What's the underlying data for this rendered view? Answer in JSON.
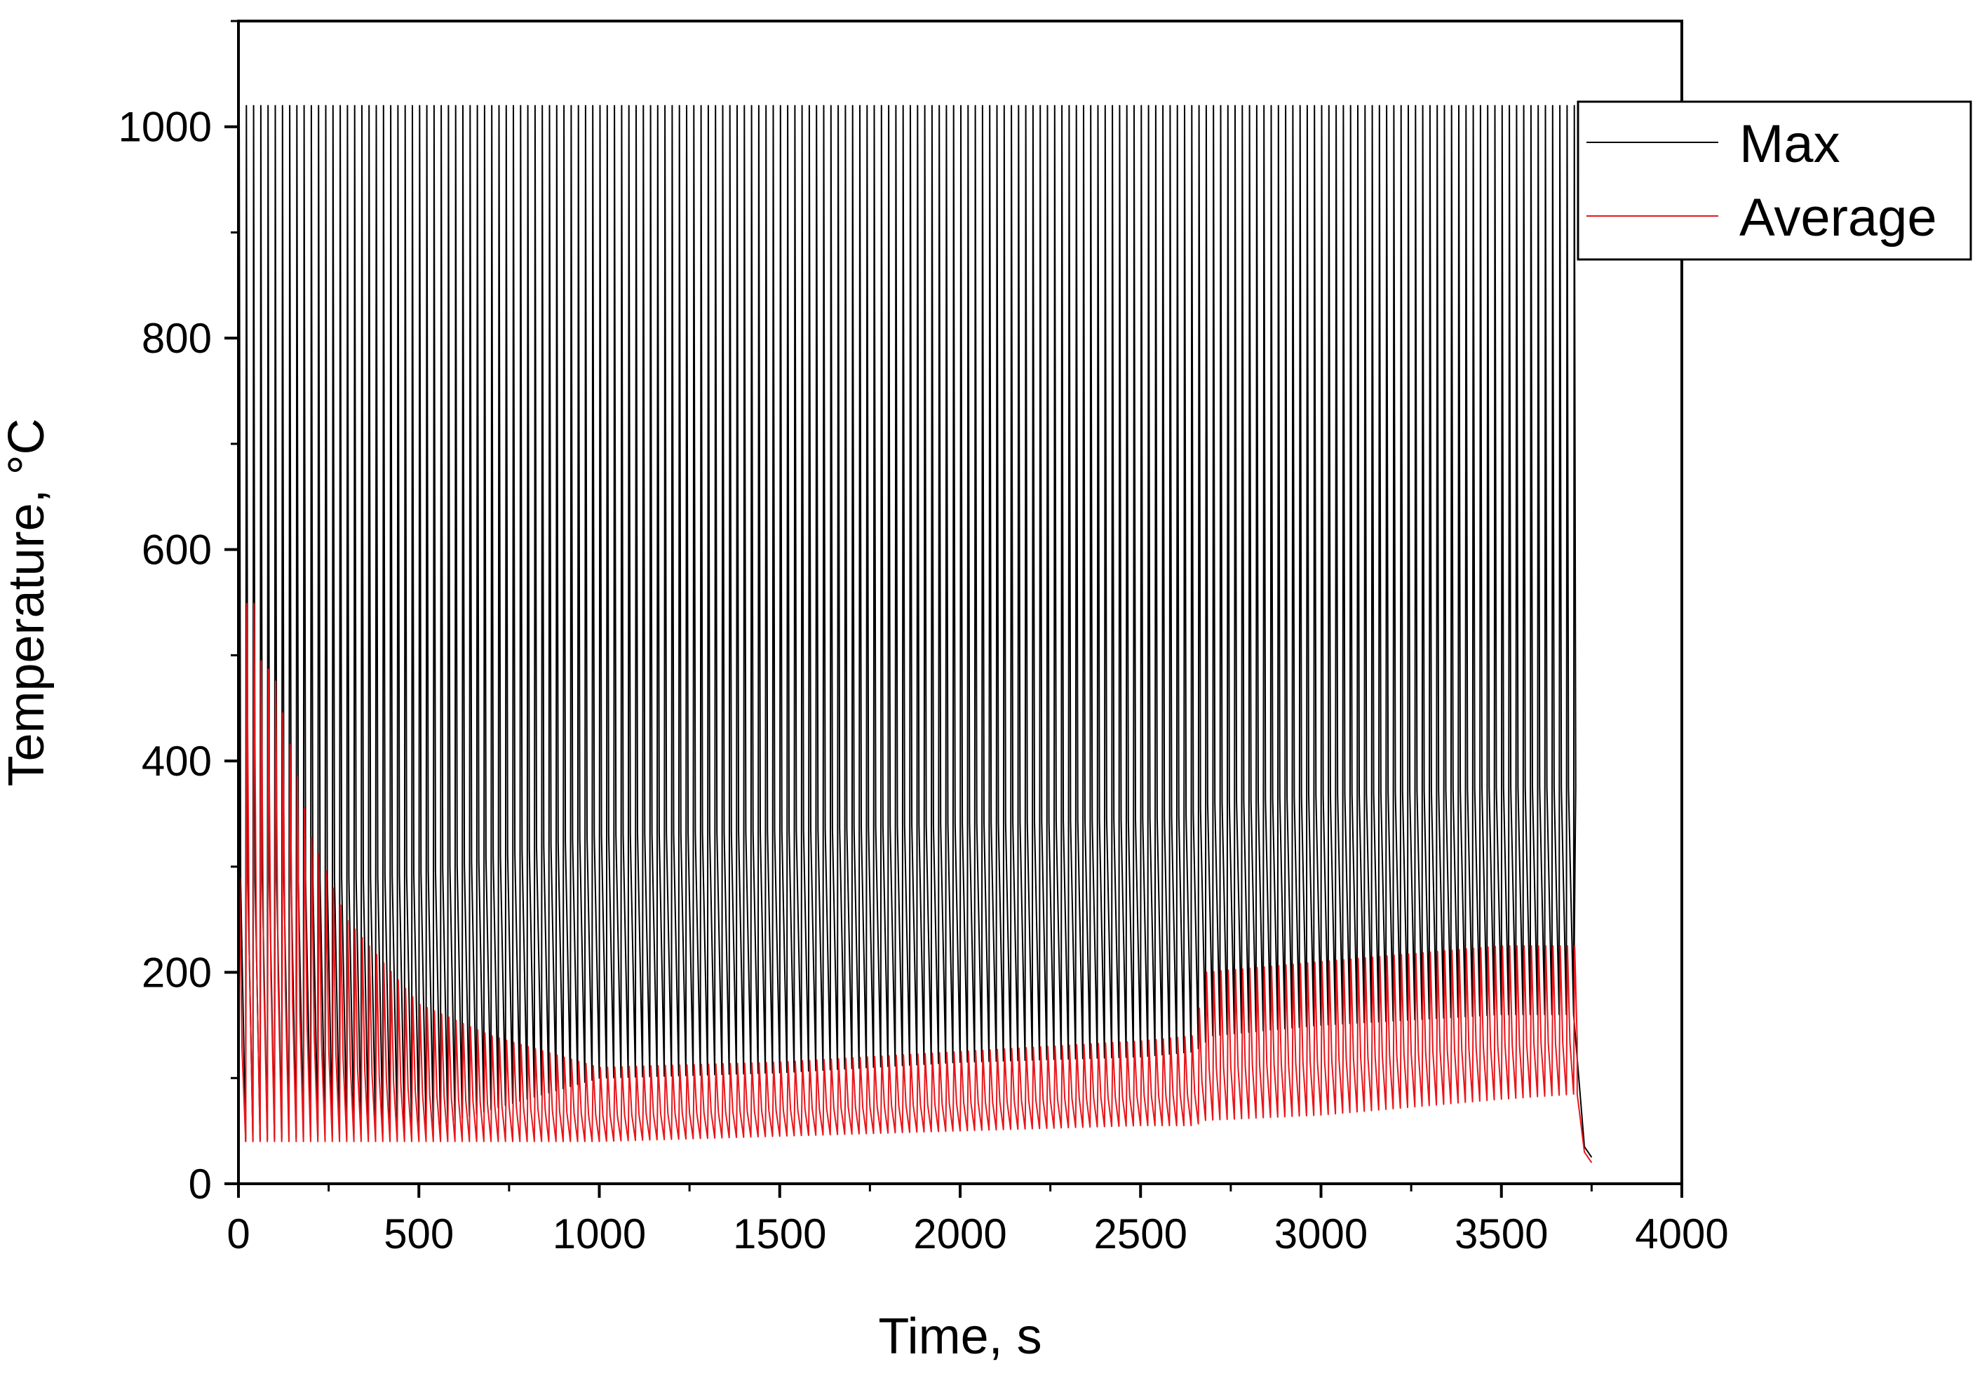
{
  "chart_data": {
    "type": "line",
    "title": "",
    "xlabel": "Time, s",
    "ylabel": "Temperature, °C",
    "xlim": [
      0,
      4000
    ],
    "ylim": [
      0,
      1100
    ],
    "x_ticks": [
      0,
      500,
      1000,
      1500,
      2000,
      2500,
      3000,
      3500,
      4000
    ],
    "y_ticks": [
      0,
      200,
      400,
      600,
      800,
      1000
    ],
    "x_tick_labels": [
      "0",
      "500",
      "1000",
      "1500",
      "2000",
      "2500",
      "3000",
      "3500",
      "4000"
    ],
    "y_tick_labels": [
      "0",
      "200",
      "400",
      "600",
      "800",
      "1000"
    ],
    "grid": false,
    "legend_position": "top-right",
    "cycle_period_s": 20,
    "end_time_s": 3750,
    "series": [
      {
        "name": "Max",
        "color": "#000000",
        "peak_value": 1020,
        "envelope": {
          "x": [
            0,
            10,
            200,
            500,
            1000,
            1500,
            2000,
            2500,
            2650,
            2700,
            3000,
            3500,
            3700,
            3720,
            3750
          ],
          "min": [
            40,
            40,
            45,
            50,
            100,
            105,
            115,
            120,
            125,
            140,
            150,
            160,
            160,
            40,
            25
          ]
        }
      },
      {
        "name": "Average",
        "color": "#e8161b",
        "envelope": {
          "x": [
            0,
            30,
            50,
            100,
            200,
            300,
            500,
            700,
            1000,
            1500,
            2000,
            2500,
            2650,
            2680,
            3000,
            3500,
            3710,
            3730,
            3750
          ],
          "max": [
            250,
            640,
            500,
            480,
            330,
            250,
            170,
            140,
            110,
            115,
            125,
            135,
            140,
            200,
            210,
            225,
            225,
            60,
            20
          ],
          "min": [
            40,
            40,
            40,
            40,
            40,
            40,
            40,
            40,
            40,
            45,
            50,
            55,
            55,
            60,
            65,
            80,
            85,
            30,
            20
          ]
        }
      }
    ]
  }
}
